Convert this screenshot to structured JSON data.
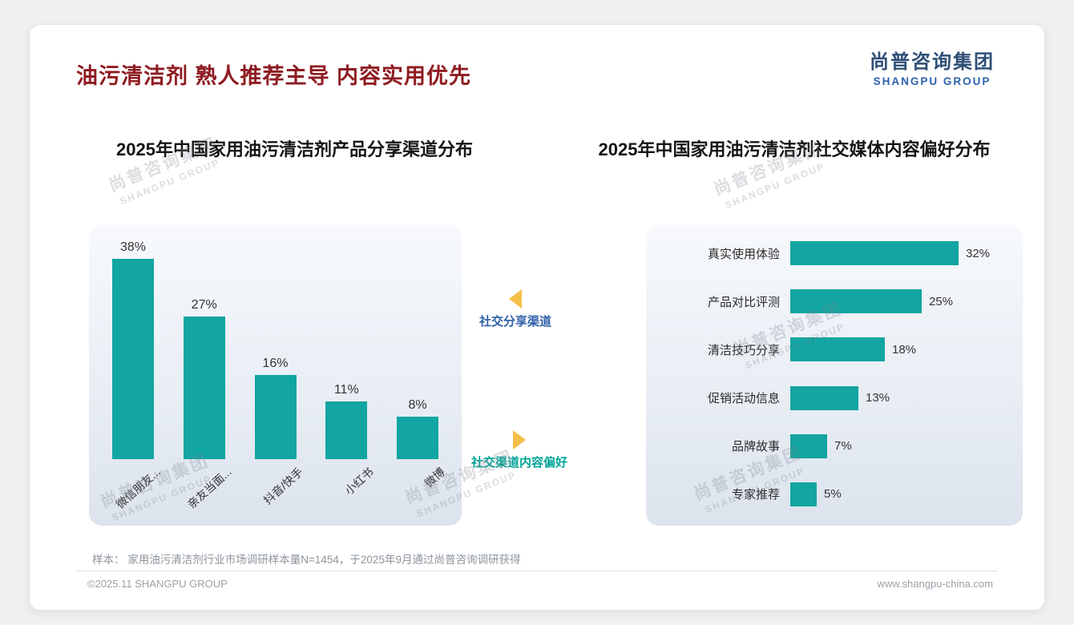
{
  "header": {
    "title": "油污清洁剂 熟人推荐主导 内容实用优先",
    "logo_cn": "尚普咨询集团",
    "logo_en": "SHANGPU GROUP"
  },
  "annotations": {
    "left_label": "社交分享渠道",
    "right_label": "社交渠道内容偏好"
  },
  "watermark": {
    "cn": "尚普咨询集团",
    "en": "SHANGPU GROUP"
  },
  "footer": {
    "sample_note": "样本： 家用油污清洁剂行业市场调研样本量N=1454，于2025年9月通过尚普咨询调研获得",
    "left": "©2025.11 SHANGPU GROUP",
    "right": "www.shangpu-china.com"
  },
  "colors": {
    "bar_teal": "#12a5a1",
    "title_red": "#8e1c22",
    "logo_blue": "#2e62ad",
    "annotation_blue": "#2e5fa8",
    "annotation_teal": "#00a498",
    "arrow_yellow": "#f3bf4a"
  },
  "chart_data": [
    {
      "type": "bar",
      "orientation": "vertical",
      "title": "2025年中国家用油污清洁剂产品分享渠道分布",
      "categories": [
        "微信朋友...",
        "亲友当面...",
        "抖音/快手",
        "小红书",
        "微博"
      ],
      "values": [
        38,
        27,
        16,
        11,
        8
      ],
      "unit": "%",
      "ylim": [
        0,
        40
      ],
      "grid": false,
      "data_labels": true,
      "legend": false
    },
    {
      "type": "bar",
      "orientation": "horizontal",
      "title": "2025年中国家用油污清洁剂社交媒体内容偏好分布",
      "categories": [
        "真实使用体验",
        "产品对比评测",
        "清洁技巧分享",
        "促销活动信息",
        "品牌故事",
        "专家推荐"
      ],
      "values": [
        32,
        25,
        18,
        13,
        7,
        5
      ],
      "unit": "%",
      "xlim": [
        0,
        35
      ],
      "grid": false,
      "data_labels": true,
      "legend": false
    }
  ]
}
